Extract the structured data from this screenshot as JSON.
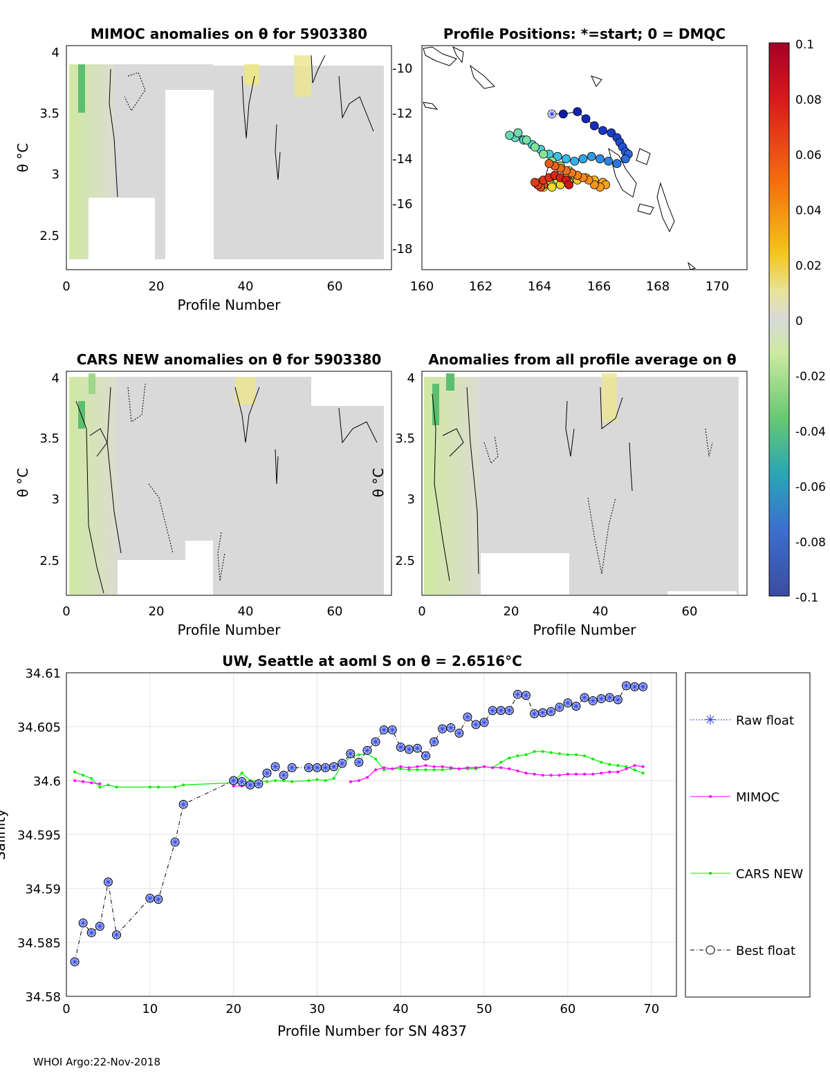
{
  "footer": "WHOI Argo:22-Nov-2018",
  "panels": {
    "mimoc": {
      "title": "MIMOC anomalies on θ  for 5903380",
      "xlabel": "Profile Number",
      "ylabel": "θ °C",
      "xticks": [
        "0",
        "20",
        "40",
        "60"
      ],
      "yticks": [
        "2.5",
        "3",
        "3.5",
        "4"
      ]
    },
    "positions": {
      "title": "Profile Positions: *=start; 0 = DMQC",
      "xticks": [
        "160",
        "162",
        "164",
        "166",
        "168",
        "170"
      ],
      "yticks": [
        "-10",
        "-12",
        "-14",
        "-16",
        "-18"
      ]
    },
    "cars": {
      "title": "CARS NEW anomalies on θ for 5903380",
      "xlabel": "Profile Number",
      "ylabel": "θ °C",
      "xticks": [
        "0",
        "20",
        "40",
        "60"
      ],
      "yticks": [
        "2.5",
        "3",
        "3.5",
        "4"
      ]
    },
    "avg": {
      "title": "Anomalies from all profile average on θ",
      "xlabel": "Profile Number",
      "ylabel": "θ °C",
      "xticks": [
        "0",
        "20",
        "40",
        "60"
      ],
      "yticks": [
        "2.5",
        "3",
        "3.5",
        "4"
      ]
    },
    "colorbar": {
      "ticks": [
        "0.1",
        "0.08",
        "0.06",
        "0.04",
        "0.02",
        "0",
        "-0.02",
        "-0.04",
        "-0.06",
        "-0.08",
        "-0.1"
      ]
    }
  },
  "chart_data": [
    {
      "type": "line",
      "title": "UW, Seattle at aoml S on θ = 2.6516°C",
      "xlabel": "Profile Number for SN 4837",
      "ylabel": "Salinity",
      "xlim": [
        0,
        73
      ],
      "ylim": [
        34.58,
        34.61
      ],
      "xticks": [
        0,
        10,
        20,
        30,
        40,
        50,
        60,
        70
      ],
      "yticks": [
        34.58,
        34.585,
        34.59,
        34.595,
        34.6,
        34.605,
        34.61
      ],
      "ytick_labels": [
        "34.58",
        "34.585",
        "34.59",
        "34.595",
        "34.6",
        "34.605",
        "34.61"
      ],
      "legend": [
        "Raw float",
        "MIMOC",
        "CARS NEW",
        "Best float"
      ],
      "series": [
        {
          "name": "Best float",
          "color": "#3344ee",
          "x": [
            1,
            2,
            3,
            4,
            5,
            6,
            10,
            11,
            13,
            14,
            20,
            21,
            22,
            23,
            24,
            25,
            26,
            27,
            29,
            30,
            31,
            32,
            33,
            34,
            35,
            36,
            37,
            38,
            39,
            40,
            41,
            42,
            43,
            44,
            45,
            46,
            47,
            48,
            49,
            50,
            51,
            52,
            53,
            54,
            55,
            56,
            57,
            58,
            59,
            60,
            61,
            62,
            63,
            64,
            65,
            66,
            67,
            68,
            69
          ],
          "y": [
            34.5832,
            34.5868,
            34.5859,
            34.5865,
            34.5906,
            34.5857,
            34.5891,
            34.589,
            34.5943,
            34.5978,
            34.6,
            34.5999,
            34.5996,
            34.5997,
            34.6007,
            34.6013,
            34.6005,
            34.6012,
            34.6012,
            34.6012,
            34.6012,
            34.6013,
            34.6016,
            34.6025,
            34.6017,
            34.6028,
            34.6036,
            34.6047,
            34.6047,
            34.6031,
            34.6029,
            34.603,
            34.6023,
            34.6036,
            34.6048,
            34.6049,
            34.6044,
            34.6059,
            34.6052,
            34.6054,
            34.6065,
            34.6065,
            34.6065,
            34.608,
            34.6079,
            34.6062,
            34.6063,
            34.6064,
            34.6068,
            34.6072,
            34.6069,
            34.6077,
            34.6074,
            34.6076,
            34.6077,
            34.6075,
            34.6088,
            34.6087,
            34.6087
          ]
        },
        {
          "name": "MIMOC",
          "color": "#ff00ff",
          "x": [
            1,
            2,
            3,
            4,
            20,
            21,
            22,
            23,
            34,
            35,
            36,
            37,
            38,
            39,
            40,
            41,
            42,
            43,
            44,
            45,
            46,
            47,
            48,
            49,
            50,
            51,
            52,
            53,
            54,
            55,
            56,
            57,
            58,
            59,
            60,
            61,
            62,
            63,
            64,
            65,
            66,
            67,
            68,
            69
          ],
          "y": [
            34.6,
            34.5999,
            34.5998,
            34.5997,
            34.5995,
            34.5995,
            34.5995,
            34.5996,
            34.5999,
            34.6,
            34.6003,
            34.601,
            34.6012,
            34.6011,
            34.6013,
            34.6012,
            34.6013,
            34.6014,
            34.6013,
            34.6013,
            34.6012,
            34.6011,
            34.6012,
            34.6012,
            34.6013,
            34.6012,
            34.6012,
            34.6011,
            34.6009,
            34.6007,
            34.6006,
            34.6005,
            34.6005,
            34.6005,
            34.6006,
            34.6006,
            34.6006,
            34.6006,
            34.6007,
            34.6008,
            34.6008,
            34.6011,
            34.6014,
            34.6013
          ]
        },
        {
          "name": "CARS NEW",
          "color": "#00ee00",
          "x": [
            1,
            2,
            3,
            4,
            5,
            6,
            10,
            11,
            13,
            14,
            20,
            21,
            22,
            23,
            24,
            25,
            26,
            27,
            29,
            30,
            31,
            32,
            33,
            34,
            35,
            36,
            37,
            38,
            39,
            40,
            41,
            42,
            43,
            44,
            45,
            46,
            47,
            48,
            49,
            50,
            51,
            52,
            53,
            54,
            55,
            56,
            57,
            58,
            59,
            60,
            61,
            62,
            63,
            64,
            65,
            66,
            67,
            68,
            69
          ],
          "y": [
            34.6008,
            34.6005,
            34.6002,
            34.5994,
            34.5996,
            34.5994,
            34.5994,
            34.5994,
            34.5994,
            34.5996,
            34.5998,
            34.6007,
            34.6,
            34.6,
            34.5999,
            34.6,
            34.6,
            34.5999,
            34.6,
            34.6001,
            34.6,
            34.6002,
            34.6015,
            34.6022,
            34.6024,
            34.6025,
            34.602,
            34.601,
            34.6011,
            34.6011,
            34.601,
            34.601,
            34.601,
            34.601,
            34.601,
            34.6011,
            34.6011,
            34.6011,
            34.6011,
            34.6013,
            34.6012,
            34.6017,
            34.6021,
            34.6023,
            34.6024,
            34.6027,
            34.6027,
            34.6026,
            34.6025,
            34.6024,
            34.6024,
            34.6023,
            34.602,
            34.6017,
            34.6015,
            34.6014,
            34.6013,
            34.601,
            34.6007
          ]
        }
      ]
    },
    {
      "type": "scatter",
      "title": "Profile Positions: *=start; 0 = DMQC",
      "xlim": [
        160,
        171.5
      ],
      "ylim": [
        -19,
        -9.5
      ],
      "x": [
        164.6,
        165.0,
        165.5,
        165.8,
        166.1,
        166.4,
        166.7,
        166.9,
        167.0,
        167.1,
        167.2,
        167.3,
        167.2,
        166.9,
        166.6,
        166.3,
        166.0,
        165.7,
        165.4,
        165.1,
        164.8,
        164.5,
        164.2,
        163.9,
        163.6,
        163.3,
        163.1,
        163.4,
        163.7,
        164.0,
        164.3,
        164.6,
        164.9,
        165.2,
        165.4,
        165.1,
        164.8,
        164.5,
        164.2,
        164.1,
        164.3,
        164.6,
        164.9,
        165.2,
        165.5,
        165.8,
        166.1,
        166.4,
        166.5,
        166.3,
        166.1,
        165.9,
        165.7,
        165.5,
        165.3,
        165.1,
        164.9,
        164.7,
        164.5,
        164.3,
        164.2,
        164.1,
        164.0,
        164.3,
        164.5,
        164.7,
        164.9,
        165.1,
        165.2
      ],
      "y": [
        -12.4,
        -12.4,
        -12.3,
        -12.6,
        -12.9,
        -13.1,
        -13.2,
        -13.4,
        -13.6,
        -13.8,
        -14.0,
        -14.1,
        -14.3,
        -14.5,
        -14.4,
        -14.3,
        -14.2,
        -14.3,
        -14.4,
        -14.3,
        -14.2,
        -14.1,
        -13.9,
        -13.7,
        -13.5,
        -13.4,
        -13.3,
        -13.2,
        -13.5,
        -13.8,
        -14.1,
        -14.4,
        -14.6,
        -14.8,
        -15.0,
        -15.1,
        -15.2,
        -15.2,
        -15.3,
        -15.4,
        -15.5,
        -15.5,
        -15.4,
        -15.3,
        -15.2,
        -15.1,
        -15.2,
        -15.3,
        -15.4,
        -15.5,
        -15.4,
        -15.2,
        -15.1,
        -15.0,
        -14.9,
        -14.8,
        -14.7,
        -14.6,
        -14.5,
        -15.4,
        -15.5,
        -15.4,
        -15.3,
        -15.2,
        -15.1,
        -15.0,
        -15.1,
        -15.2,
        -15.4
      ]
    }
  ]
}
